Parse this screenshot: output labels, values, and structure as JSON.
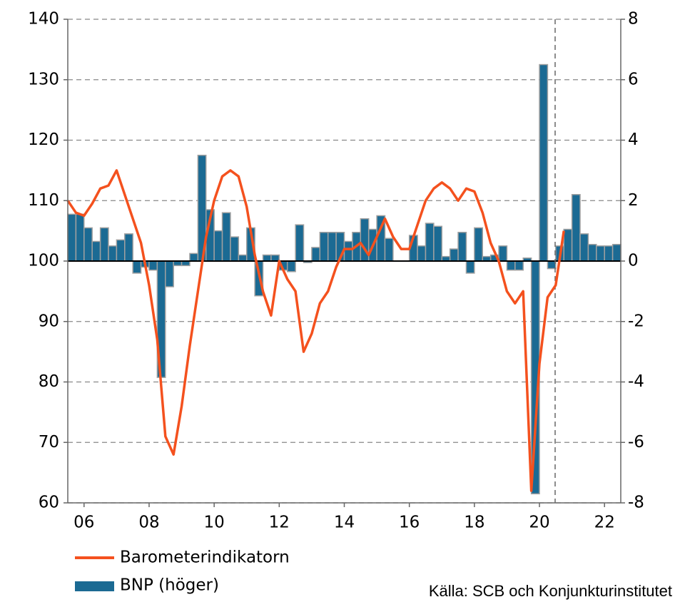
{
  "chart_data": {
    "type": "bar-line",
    "source": "Källa: SCB och Konjunkturinstitutet",
    "xlim": [
      2006,
      2023
    ],
    "xticks": [
      {
        "value": 2006.5,
        "label": "06"
      },
      {
        "value": 2008.5,
        "label": "08"
      },
      {
        "value": 2010.5,
        "label": "10"
      },
      {
        "value": 2012.5,
        "label": "12"
      },
      {
        "value": 2014.5,
        "label": "14"
      },
      {
        "value": 2016.5,
        "label": "16"
      },
      {
        "value": 2018.5,
        "label": "18"
      },
      {
        "value": 2020.5,
        "label": "20"
      },
      {
        "value": 2022.5,
        "label": "22"
      }
    ],
    "ylim": [
      60,
      140
    ],
    "yticks": [
      60,
      70,
      80,
      90,
      100,
      110,
      120,
      130,
      140
    ],
    "y2lim": [
      -8,
      8
    ],
    "y2ticks": [
      -8,
      -6,
      -4,
      -2,
      0,
      2,
      4,
      6,
      8
    ],
    "grid": true,
    "legend": "bottom-left",
    "series": [
      {
        "name": "Barometerindikatorn",
        "type": "line",
        "color": "#f4511e",
        "x": [
          2006,
          2006.25,
          2006.5,
          2006.75,
          2007,
          2007.25,
          2007.5,
          2007.75,
          2008,
          2008.25,
          2008.5,
          2008.75,
          2009,
          2009.25,
          2009.5,
          2009.75,
          2010,
          2010.25,
          2010.5,
          2010.75,
          2011,
          2011.25,
          2011.5,
          2011.75,
          2012,
          2012.25,
          2012.5,
          2012.75,
          2013,
          2013.25,
          2013.5,
          2013.75,
          2014,
          2014.25,
          2014.5,
          2014.75,
          2015,
          2015.25,
          2015.5,
          2015.75,
          2016,
          2016.25,
          2016.5,
          2016.75,
          2017,
          2017.25,
          2017.5,
          2017.75,
          2018,
          2018.25,
          2018.5,
          2018.75,
          2019,
          2019.25,
          2019.5,
          2019.75,
          2020,
          2020.25,
          2020.5,
          2020.75,
          2021,
          2021.25
        ],
        "values": [
          110,
          108,
          107.5,
          109.5,
          112,
          112.5,
          115,
          111,
          107,
          103,
          96,
          87,
          71,
          68,
          76,
          86,
          95,
          104,
          110,
          114,
          115,
          114,
          109,
          101,
          95,
          91,
          100,
          97,
          95,
          85,
          88,
          93,
          95,
          99,
          102,
          102,
          103,
          101,
          104,
          107,
          104,
          102,
          102,
          106,
          110,
          112,
          113,
          112,
          110,
          112,
          111.5,
          108,
          103,
          100,
          95,
          93,
          95,
          62,
          83,
          94,
          96,
          105
        ]
      },
      {
        "name": "BNP (höger)",
        "type": "bar",
        "axis": "y2",
        "color": "#1b6a93",
        "x": [
          2006,
          2006.25,
          2006.5,
          2006.75,
          2007,
          2007.25,
          2007.5,
          2007.75,
          2008,
          2008.25,
          2008.5,
          2008.75,
          2009,
          2009.25,
          2009.5,
          2009.75,
          2010,
          2010.25,
          2010.5,
          2010.75,
          2011,
          2011.25,
          2011.5,
          2011.75,
          2012,
          2012.25,
          2012.5,
          2012.75,
          2013,
          2013.25,
          2013.5,
          2013.75,
          2014,
          2014.25,
          2014.5,
          2014.75,
          2015,
          2015.25,
          2015.5,
          2015.75,
          2016,
          2016.25,
          2016.5,
          2016.75,
          2017,
          2017.25,
          2017.5,
          2017.75,
          2018,
          2018.25,
          2018.5,
          2018.75,
          2019,
          2019.25,
          2019.5,
          2019.75,
          2020,
          2020.25,
          2020.5,
          2020.75,
          2021,
          2021.25,
          2021.5,
          2021.75,
          2022,
          2022.25,
          2022.5,
          2022.75
        ],
        "values": [
          1.55,
          1.55,
          1.1,
          0.65,
          1.1,
          0.5,
          0.7,
          0.9,
          -0.4,
          -0.2,
          -0.3,
          -3.85,
          -0.85,
          -0.15,
          -0.15,
          0.25,
          3.5,
          1.7,
          1.0,
          1.6,
          0.8,
          0.2,
          1.1,
          -1.15,
          0.2,
          0.2,
          -0.3,
          -0.35,
          1.2,
          -0.05,
          0.45,
          0.95,
          0.95,
          0.95,
          0.65,
          0.95,
          1.4,
          1.05,
          1.5,
          0.75,
          0.0,
          0.0,
          0.85,
          0.5,
          1.25,
          1.15,
          0.15,
          0.4,
          0.95,
          -0.4,
          1.1,
          0.15,
          0.2,
          0.5,
          -0.3,
          -0.3,
          0.1,
          -7.7,
          6.5,
          -0.25,
          0.5,
          1.05,
          2.2,
          0.9,
          0.55,
          0.5,
          0.5,
          0.55
        ]
      }
    ]
  }
}
